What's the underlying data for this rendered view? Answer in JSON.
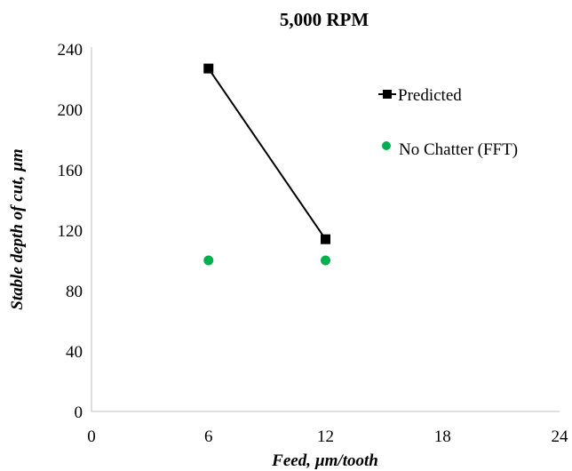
{
  "chart_data": {
    "type": "scatter",
    "title": "5,000 RPM",
    "xlabel": "Feed, µm/tooth",
    "ylabel": "Stable depth of cut, µm",
    "xlim": [
      0,
      24
    ],
    "ylim": [
      0,
      240
    ],
    "x_ticks": [
      0,
      6,
      12,
      18,
      24
    ],
    "y_ticks": [
      0,
      40,
      80,
      120,
      160,
      200,
      240
    ],
    "x_tick_labels": [
      "0",
      "6",
      "12",
      "18",
      "24"
    ],
    "y_tick_labels": [
      "0",
      "40",
      "80",
      "120",
      "160",
      "200",
      "240"
    ],
    "grid": false,
    "legend_position": "right",
    "series": [
      {
        "name": "Predicted",
        "style": "line-with-square-markers",
        "color": "#000000",
        "x": [
          6,
          12
        ],
        "y": [
          227,
          114
        ]
      },
      {
        "name": "No Chatter (FFT)",
        "style": "circle-markers",
        "color": "#00b050",
        "x": [
          6,
          12
        ],
        "y": [
          100,
          100
        ]
      }
    ]
  }
}
